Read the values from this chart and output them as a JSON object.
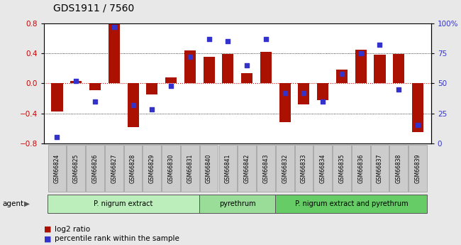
{
  "title": "GDS1911 / 7560",
  "categories": [
    "GSM66824",
    "GSM66825",
    "GSM66826",
    "GSM66827",
    "GSM66828",
    "GSM66829",
    "GSM66830",
    "GSM66831",
    "GSM66840",
    "GSM66841",
    "GSM66842",
    "GSM66843",
    "GSM66832",
    "GSM66833",
    "GSM66834",
    "GSM66835",
    "GSM66836",
    "GSM66837",
    "GSM66838",
    "GSM66839"
  ],
  "log2_ratio": [
    -0.38,
    0.03,
    -0.09,
    0.79,
    -0.58,
    -0.15,
    0.08,
    0.44,
    0.35,
    0.39,
    0.14,
    0.42,
    -0.52,
    -0.28,
    -0.22,
    0.18,
    0.45,
    0.38,
    0.39,
    -0.65
  ],
  "pct_rank": [
    5,
    52,
    35,
    97,
    32,
    28,
    48,
    72,
    87,
    85,
    65,
    87,
    42,
    42,
    35,
    58,
    75,
    82,
    45,
    15
  ],
  "bar_color": "#aa1100",
  "dot_color": "#3333cc",
  "groups": [
    {
      "label": "P. nigrum extract",
      "start": 0,
      "end": 8,
      "color": "#bbeebb"
    },
    {
      "label": "pyrethrum",
      "start": 8,
      "end": 12,
      "color": "#99dd99"
    },
    {
      "label": "P. nigrum extract and pyrethrum",
      "start": 12,
      "end": 20,
      "color": "#66cc66"
    }
  ],
  "ylim_left": [
    -0.8,
    0.8
  ],
  "ylim_right": [
    0,
    100
  ],
  "yticks_left": [
    -0.8,
    -0.4,
    0.0,
    0.4,
    0.8
  ],
  "yticks_right": [
    0,
    25,
    50,
    75,
    100
  ],
  "ytick_labels_right": [
    "0",
    "25",
    "50",
    "75",
    "100%"
  ],
  "hline_color": "#dd0000",
  "grid_color": "#000000",
  "plot_bg": "#ffffff",
  "fig_bg": "#e8e8e8",
  "xtick_bg": "#cccccc",
  "agent_label": "agent",
  "legend_bar": "log2 ratio",
  "legend_dot": "percentile rank within the sample"
}
